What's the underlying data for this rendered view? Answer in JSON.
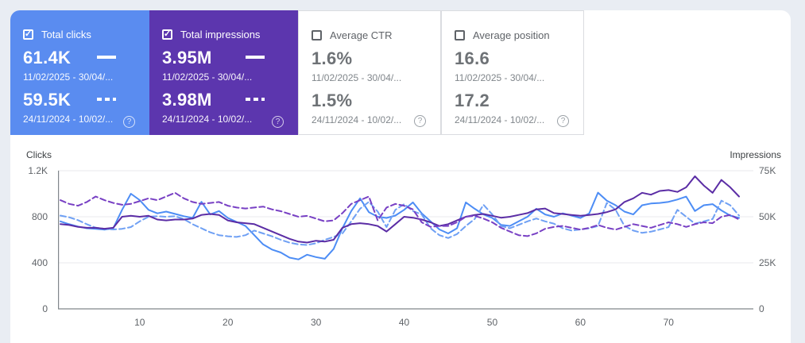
{
  "page": {
    "bg": "#e9edf3",
    "panel_bg": "#ffffff",
    "grid_color": "#e8eaed",
    "axis_color": "#80868b"
  },
  "cards": [
    {
      "label": "Total clicks",
      "checked": true,
      "bg": "#5a8cf0",
      "rows": [
        {
          "value": "61.4K",
          "dates": "11/02/2025 - 30/04/...",
          "indicator": "solid"
        },
        {
          "value": "59.5K",
          "dates": "24/11/2024 - 10/02/...",
          "indicator": "dashed"
        }
      ],
      "help": "?"
    },
    {
      "label": "Total impressions",
      "checked": true,
      "bg": "#5c36ae",
      "rows": [
        {
          "value": "3.95M",
          "dates": "11/02/2025 - 30/04/...",
          "indicator": "solid"
        },
        {
          "value": "3.98M",
          "dates": "24/11/2024 - 10/02/...",
          "indicator": "dashed"
        }
      ],
      "help": "?"
    },
    {
      "label": "Average CTR",
      "checked": false,
      "bg": "#ffffff",
      "rows": [
        {
          "value": "1.6%",
          "dates": "11/02/2025 - 30/04/...",
          "indicator": "none"
        },
        {
          "value": "1.5%",
          "dates": "24/11/2024 - 10/02/...",
          "indicator": "none"
        }
      ],
      "help": "?"
    },
    {
      "label": "Average position",
      "checked": false,
      "bg": "#ffffff",
      "rows": [
        {
          "value": "16.6",
          "dates": "11/02/2025 - 30/04/...",
          "indicator": "none"
        },
        {
          "value": "17.2",
          "dates": "24/11/2024 - 10/02/...",
          "indicator": "none"
        }
      ],
      "help": "?"
    }
  ],
  "chart_data": {
    "type": "line",
    "left_axis": {
      "title": "Clicks",
      "ticks": [
        "1.2K",
        "800",
        "400",
        "0"
      ],
      "max": 1200
    },
    "right_axis": {
      "title": "Impressions",
      "ticks": [
        "75K",
        "50K",
        "25K",
        "0"
      ],
      "max": 75,
      "unit": "K"
    },
    "x_axis": {
      "ticks": [
        10,
        20,
        30,
        40,
        50,
        60,
        70
      ],
      "days": 78
    },
    "grid": true,
    "series": [
      {
        "name": "Total clicks 11/02/2025 - 30/04/...",
        "axis": "left",
        "style": "solid",
        "color": "#4d8df5",
        "values": [
          760,
          735,
          715,
          700,
          695,
          688,
          700,
          860,
          1000,
          945,
          860,
          830,
          845,
          825,
          805,
          790,
          930,
          820,
          850,
          790,
          755,
          720,
          640,
          560,
          515,
          490,
          445,
          430,
          470,
          450,
          435,
          520,
          700,
          850,
          960,
          840,
          800,
          790,
          810,
          860,
          925,
          830,
          760,
          690,
          655,
          700,
          925,
          870,
          820,
          790,
          730,
          720,
          760,
          800,
          870,
          820,
          800,
          830,
          810,
          790,
          830,
          1010,
          940,
          900,
          845,
          820,
          900,
          915,
          920,
          930,
          950,
          975,
          850,
          900,
          910,
          855,
          810,
          790
        ]
      },
      {
        "name": "Total clicks 24/11/2024 - 10/02/...",
        "axis": "left",
        "style": "dashed",
        "color": "#6fa0f4",
        "values": [
          810,
          795,
          770,
          735,
          705,
          695,
          690,
          695,
          710,
          760,
          800,
          805,
          800,
          805,
          780,
          735,
          700,
          665,
          640,
          630,
          625,
          640,
          680,
          655,
          630,
          600,
          575,
          560,
          555,
          570,
          600,
          625,
          655,
          760,
          870,
          930,
          845,
          710,
          860,
          910,
          850,
          820,
          700,
          640,
          615,
          650,
          720,
          780,
          904,
          820,
          720,
          700,
          730,
          760,
          785,
          760,
          740,
          700,
          680,
          690,
          700,
          720,
          920,
          860,
          720,
          680,
          660,
          670,
          690,
          710,
          860,
          800,
          740,
          760,
          780,
          940,
          900,
          810
        ]
      },
      {
        "name": "Total impressions 11/02/2025 - 30/04/...",
        "axis": "right",
        "style": "solid",
        "color": "#5b2da5",
        "values": [
          46,
          45.5,
          44.5,
          44,
          44,
          43.5,
          44,
          50,
          50.5,
          50,
          50.5,
          48.5,
          48,
          48.5,
          48.5,
          49,
          51,
          51.5,
          51,
          48,
          47,
          46.5,
          46,
          44,
          42,
          40,
          38,
          36.5,
          36,
          37,
          36.5,
          37.5,
          44,
          46,
          46.5,
          46,
          45,
          42,
          46,
          50,
          49.5,
          48.5,
          47,
          45,
          46,
          48,
          50,
          51,
          51.5,
          50.5,
          49.5,
          50,
          51,
          52,
          54,
          54.5,
          52,
          51.5,
          51,
          50.5,
          51,
          51.5,
          52.5,
          54,
          58,
          60,
          63,
          62,
          64,
          64.5,
          63.5,
          66,
          72,
          67,
          63,
          70,
          66,
          61
        ]
      },
      {
        "name": "Total impressions 24/11/2024 - 10/02/...",
        "axis": "right",
        "style": "dashed",
        "color": "#7840c4",
        "values": [
          59,
          57,
          56,
          58,
          61,
          59,
          57.5,
          56.5,
          57,
          58.5,
          60,
          59,
          61,
          63,
          60,
          58,
          57,
          57.5,
          58,
          56,
          55,
          54.5,
          55,
          55.5,
          54,
          53,
          51.5,
          50,
          50.5,
          49,
          47.5,
          48,
          52,
          57,
          59,
          61,
          48,
          55,
          57,
          56,
          54,
          47,
          44.5,
          45,
          45,
          47,
          50,
          50.5,
          49,
          47,
          44,
          42,
          40,
          39.5,
          41,
          43.5,
          44.5,
          45,
          44,
          43,
          44,
          45.5,
          44,
          43,
          44.5,
          46,
          45,
          44,
          45.5,
          47,
          46,
          44.5,
          46,
          47,
          46.5,
          50,
          51,
          48.5
        ]
      }
    ]
  }
}
